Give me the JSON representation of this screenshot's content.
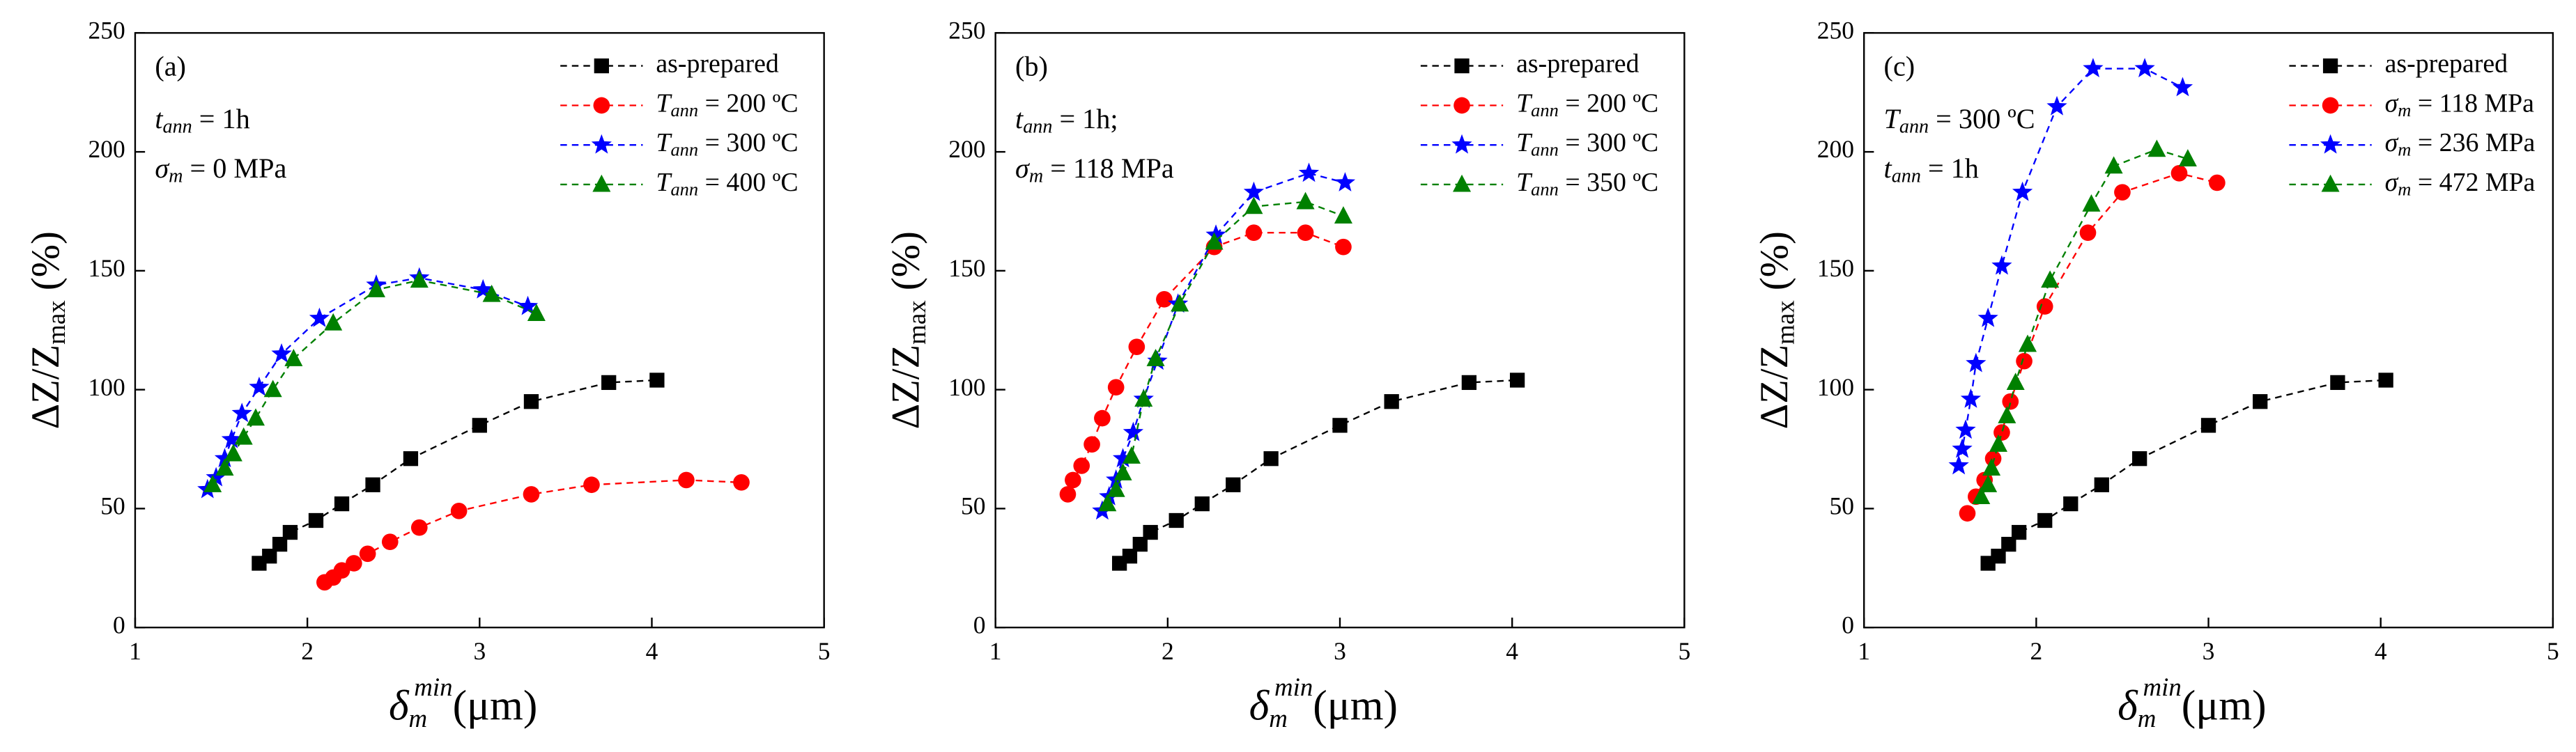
{
  "chart_data": [
    {
      "type": "line",
      "xlabel": "δmmin(μm)",
      "ylabel": "ΔZ/Zmax (%)",
      "xlim": [
        1,
        5
      ],
      "ylim": [
        0,
        250
      ],
      "xticks": [
        1,
        2,
        3,
        4,
        5
      ],
      "yticks": [
        0,
        50,
        100,
        150,
        200,
        250
      ],
      "legend": "upper right",
      "annotations": [
        "(a)",
        "tann = 1h",
        "σm = 0 MPa"
      ],
      "series": [
        {
          "name": "as-prepared",
          "color": "#000000",
          "marker": "square",
          "x": [
            1.72,
            1.78,
            1.84,
            1.9,
            2.05,
            2.2,
            2.38,
            2.6,
            3.0,
            3.3,
            3.75,
            4.03
          ],
          "values": [
            27,
            30,
            35,
            40,
            45,
            52,
            60,
            71,
            85,
            95,
            103,
            104
          ]
        },
        {
          "name": "Tann = 200 ºC",
          "color": "#ff0000",
          "marker": "circle",
          "x": [
            2.1,
            2.15,
            2.2,
            2.27,
            2.35,
            2.48,
            2.65,
            2.88,
            3.3,
            3.65,
            4.2,
            4.52
          ],
          "values": [
            19,
            21,
            24,
            27,
            31,
            36,
            42,
            49,
            56,
            60,
            62,
            61
          ]
        },
        {
          "name": "Tann = 300 ºC",
          "color": "#0000ff",
          "marker": "star",
          "x": [
            1.42,
            1.47,
            1.52,
            1.56,
            1.62,
            1.72,
            1.85,
            2.07,
            2.4,
            2.65,
            3.02,
            3.28
          ],
          "values": [
            58,
            63,
            71,
            79,
            90,
            101,
            115,
            130,
            144,
            147,
            142,
            135
          ]
        },
        {
          "name": "Tann = 400 ºC",
          "color": "#008000",
          "marker": "triangle",
          "x": [
            1.45,
            1.52,
            1.57,
            1.63,
            1.7,
            1.8,
            1.92,
            2.15,
            2.4,
            2.65,
            3.07,
            3.33
          ],
          "values": [
            60,
            67,
            73,
            80,
            88,
            100,
            113,
            128,
            142,
            146,
            140,
            132
          ]
        }
      ]
    },
    {
      "type": "line",
      "xlabel": "δmmin(μm)",
      "ylabel": "ΔZ/Zmax (%)",
      "xlim": [
        1,
        5
      ],
      "ylim": [
        0,
        250
      ],
      "xticks": [
        1,
        2,
        3,
        4,
        5
      ],
      "yticks": [
        0,
        50,
        100,
        150,
        200,
        250
      ],
      "legend": "upper right",
      "annotations": [
        "(b)",
        "tann = 1h;",
        "σm = 118 MPa"
      ],
      "series": [
        {
          "name": "as-prepared",
          "color": "#000000",
          "marker": "square",
          "x": [
            1.72,
            1.78,
            1.84,
            1.9,
            2.05,
            2.2,
            2.38,
            2.6,
            3.0,
            3.3,
            3.75,
            4.03
          ],
          "values": [
            27,
            30,
            35,
            40,
            45,
            52,
            60,
            71,
            85,
            95,
            103,
            104
          ]
        },
        {
          "name": "Tann = 200 ºC",
          "color": "#ff0000",
          "marker": "circle",
          "x": [
            1.42,
            1.45,
            1.5,
            1.56,
            1.62,
            1.7,
            1.82,
            1.98,
            2.27,
            2.5,
            2.8,
            3.02
          ],
          "values": [
            56,
            62,
            68,
            77,
            88,
            101,
            118,
            138,
            160,
            166,
            166,
            160
          ]
        },
        {
          "name": "Tann = 300 ºC",
          "color": "#0000ff",
          "marker": "star",
          "x": [
            1.62,
            1.66,
            1.7,
            1.74,
            1.8,
            1.86,
            1.94,
            2.06,
            2.28,
            2.5,
            2.82,
            3.03
          ],
          "values": [
            49,
            55,
            62,
            71,
            82,
            96,
            112,
            136,
            165,
            183,
            191,
            187
          ]
        },
        {
          "name": "Tann = 350 ºC",
          "color": "#008000",
          "marker": "triangle",
          "x": [
            1.65,
            1.7,
            1.74,
            1.79,
            1.86,
            1.93,
            2.07,
            2.27,
            2.5,
            2.8,
            3.02
          ],
          "values": [
            52,
            58,
            65,
            72,
            96,
            113,
            136,
            162,
            177,
            179,
            173
          ]
        }
      ]
    },
    {
      "type": "line",
      "xlabel": "δmmin(μm)",
      "ylabel": "ΔZ/Zmax (%)",
      "xlim": [
        1,
        5
      ],
      "ylim": [
        0,
        250
      ],
      "xticks": [
        1,
        2,
        3,
        4,
        5
      ],
      "yticks": [
        0,
        50,
        100,
        150,
        200,
        250
      ],
      "legend": "upper right",
      "annotations": [
        "(c)",
        "Tann = 300 ºC",
        "tann = 1h"
      ],
      "series": [
        {
          "name": "as-prepared",
          "color": "#000000",
          "marker": "square",
          "x": [
            1.72,
            1.78,
            1.84,
            1.9,
            2.05,
            2.2,
            2.38,
            2.6,
            3.0,
            3.3,
            3.75,
            4.03
          ],
          "values": [
            27,
            30,
            35,
            40,
            45,
            52,
            60,
            71,
            85,
            95,
            103,
            104
          ]
        },
        {
          "name": "σm = 118 MPa",
          "color": "#ff0000",
          "marker": "circle",
          "x": [
            1.6,
            1.65,
            1.7,
            1.75,
            1.8,
            1.85,
            1.93,
            2.05,
            2.3,
            2.5,
            2.83,
            3.05
          ],
          "values": [
            48,
            55,
            62,
            71,
            82,
            95,
            112,
            135,
            166,
            183,
            191,
            187
          ]
        },
        {
          "name": "σm = 236 MPa",
          "color": "#0000ff",
          "marker": "star",
          "x": [
            1.55,
            1.57,
            1.59,
            1.62,
            1.65,
            1.72,
            1.8,
            1.92,
            2.12,
            2.33,
            2.63,
            2.85
          ],
          "values": [
            68,
            75,
            83,
            96,
            111,
            130,
            152,
            183,
            219,
            235,
            235,
            227
          ]
        },
        {
          "name": "σm = 472 MPa",
          "color": "#008000",
          "marker": "triangle",
          "x": [
            1.68,
            1.72,
            1.74,
            1.78,
            1.83,
            1.88,
            1.95,
            2.08,
            2.32,
            2.45,
            2.7,
            2.88
          ],
          "values": [
            55,
            60,
            67,
            77,
            89,
            103,
            119,
            146,
            178,
            194,
            201,
            197
          ]
        }
      ]
    }
  ]
}
